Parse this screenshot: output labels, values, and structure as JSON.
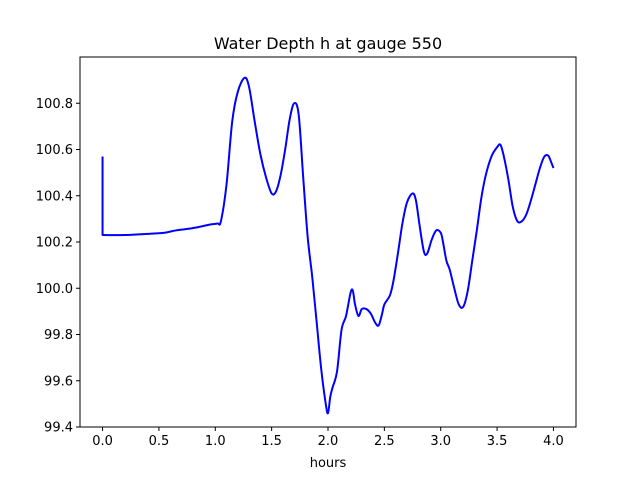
{
  "chart_data": {
    "type": "line",
    "title": "Water Depth h at gauge 550",
    "xlabel": "hours",
    "ylabel": "",
    "xlim": [
      -0.2,
      4.2
    ],
    "ylim": [
      99.4,
      101.0
    ],
    "grid": false,
    "x_ticks": [
      0.0,
      0.5,
      1.0,
      1.5,
      2.0,
      2.5,
      3.0,
      3.5,
      4.0
    ],
    "x_tick_labels": [
      "0.0",
      "0.5",
      "1.0",
      "1.5",
      "2.0",
      "2.5",
      "3.0",
      "3.5",
      "4.0"
    ],
    "y_ticks": [
      99.4,
      99.6,
      99.8,
      100.0,
      100.2,
      100.4,
      100.6,
      100.8
    ],
    "y_tick_labels": [
      "99.4",
      "99.6",
      "99.8",
      "100.0",
      "100.2",
      "100.4",
      "100.6",
      "100.8"
    ],
    "series": [
      {
        "color": "#0000ff",
        "x": [
          0.0,
          0.0,
          0.01,
          0.2,
          0.4,
          0.55,
          0.6,
          0.65,
          0.8,
          0.95,
          1.02,
          1.05,
          1.1,
          1.15,
          1.2,
          1.26,
          1.3,
          1.35,
          1.4,
          1.45,
          1.5,
          1.54,
          1.58,
          1.62,
          1.66,
          1.7,
          1.74,
          1.78,
          1.82,
          1.86,
          1.9,
          1.94,
          1.98,
          2.0,
          2.02,
          2.04,
          2.08,
          2.12,
          2.16,
          2.2,
          2.22,
          2.24,
          2.27,
          2.3,
          2.34,
          2.38,
          2.42,
          2.45,
          2.48,
          2.5,
          2.55,
          2.58,
          2.62,
          2.66,
          2.7,
          2.75,
          2.78,
          2.81,
          2.85,
          2.88,
          2.92,
          2.96,
          3.0,
          3.02,
          3.05,
          3.08,
          3.12,
          3.16,
          3.2,
          3.24,
          3.28,
          3.32,
          3.36,
          3.4,
          3.45,
          3.5,
          3.53,
          3.56,
          3.6,
          3.64,
          3.68,
          3.72,
          3.76,
          3.8,
          3.84,
          3.88,
          3.92,
          3.96,
          4.0
        ],
        "y": [
          100.57,
          100.23,
          100.23,
          100.23,
          100.235,
          100.24,
          100.245,
          100.25,
          100.26,
          100.275,
          100.28,
          100.29,
          100.45,
          100.72,
          100.85,
          100.91,
          100.87,
          100.72,
          100.58,
          100.48,
          100.41,
          100.42,
          100.49,
          100.6,
          100.73,
          100.8,
          100.75,
          100.48,
          100.22,
          100.05,
          99.85,
          99.65,
          99.5,
          99.46,
          99.53,
          99.57,
          99.64,
          99.82,
          99.88,
          99.98,
          99.99,
          99.93,
          99.88,
          99.91,
          99.91,
          99.89,
          99.85,
          99.84,
          99.89,
          99.93,
          99.97,
          100.03,
          100.15,
          100.28,
          100.37,
          100.41,
          100.38,
          100.28,
          100.16,
          100.15,
          100.21,
          100.25,
          100.24,
          100.2,
          100.12,
          100.08,
          100.0,
          99.93,
          99.92,
          99.99,
          100.12,
          100.25,
          100.39,
          100.49,
          100.57,
          100.61,
          100.62,
          100.57,
          100.47,
          100.35,
          100.29,
          100.29,
          100.32,
          100.38,
          100.45,
          100.52,
          100.57,
          100.57,
          100.52
        ]
      }
    ]
  }
}
